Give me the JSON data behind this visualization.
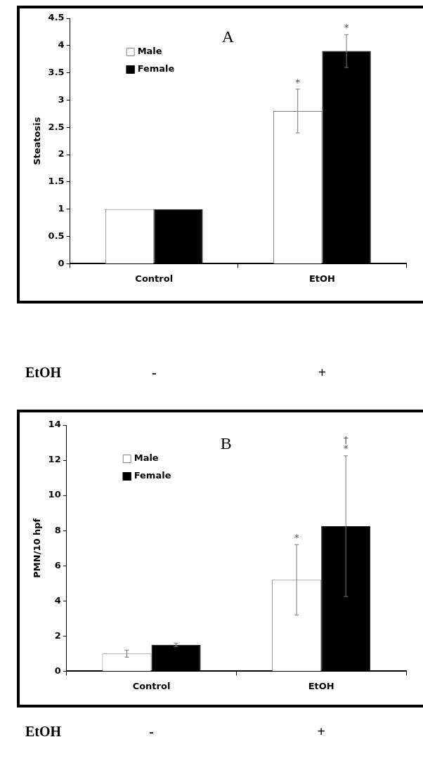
{
  "chart_data": [
    {
      "type": "bar",
      "title": "A",
      "ylabel": "Steatosis",
      "categories": [
        "Control",
        "EtOH"
      ],
      "series": [
        {
          "name": "Male",
          "color": "#808080",
          "values": [
            1,
            2.8
          ],
          "errors": [
            null,
            0.4
          ]
        },
        {
          "name": "Female",
          "color": "#000000",
          "values": [
            1,
            3.9
          ],
          "errors": [
            null,
            0.3
          ]
        }
      ],
      "ylim": [
        0,
        4.5
      ],
      "yticks": [
        0,
        0.5,
        1,
        1.5,
        2,
        2.5,
        3,
        3.5,
        4,
        4.5
      ],
      "grid": false,
      "legend": "top left",
      "annotations": [
        {
          "text": "*",
          "x": "EtOH",
          "y": 3.2
        },
        "*",
        "EtOH",
        "-",
        "+"
      ]
    },
    {
      "type": "bar",
      "title": "B",
      "ylabel": "PMN/10 hpf",
      "categories": [
        "Control",
        "EtOH"
      ],
      "series": [
        {
          "name": "Male",
          "color": "#808080",
          "values": [
            1,
            5.2
          ],
          "errors": [
            0.2,
            2
          ]
        },
        {
          "name": "Female",
          "color": "#000000",
          "values": [
            1.5,
            8.25
          ],
          "errors": [
            0.1,
            4
          ]
        }
      ],
      "ylim": [
        0,
        14
      ],
      "yticks": [
        0,
        2,
        4,
        6,
        8,
        10,
        12,
        14
      ],
      "grid": false,
      "legend": "top left",
      "annotations": [
        {
          "text": "*",
          "x": "EtOH",
          "y": 7.2
        },
        "*",
        "†",
        "EtOH",
        "-",
        "+"
      ]
    }
  ]
}
